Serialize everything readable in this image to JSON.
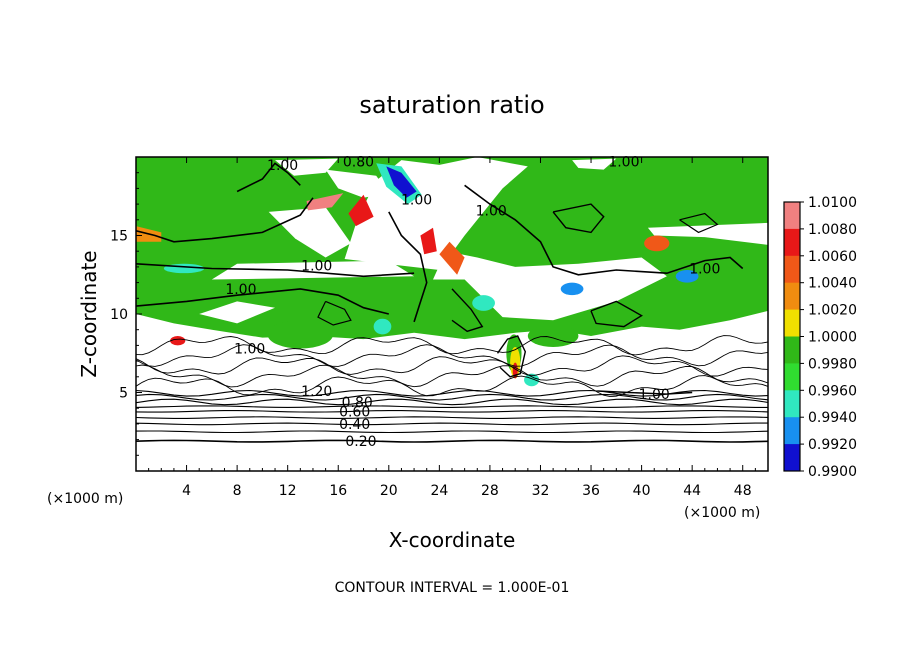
{
  "chart_data": {
    "type": "heatmap",
    "title": "saturation ratio",
    "xlabel": "X-coordinate",
    "ylabel": "Z-coordinate",
    "x_unit": "(×1000 m)",
    "y_unit": "(×1000 m)",
    "xlim": [
      0,
      50
    ],
    "ylim": [
      0,
      20
    ],
    "x_ticks": [
      4,
      8,
      12,
      16,
      20,
      24,
      28,
      32,
      36,
      40,
      44,
      48
    ],
    "y_ticks": [
      5,
      10,
      15
    ],
    "footer": "CONTOUR INTERVAL = 1.000E-01",
    "colorbar": {
      "labels": [
        "1.0100",
        "1.0080",
        "1.0060",
        "1.0040",
        "1.0020",
        "1.0000",
        "0.9980",
        "0.9960",
        "0.9940",
        "0.9920",
        "0.9900"
      ],
      "colors": [
        "#f08080",
        "#e81818",
        "#f05818",
        "#f08c10",
        "#f0e000",
        "#30b818",
        "#30dc30",
        "#30e8c0",
        "#1890f0",
        "#1010d0",
        "#6a0a9a"
      ]
    },
    "contour_labels": [
      {
        "text": "0.20",
        "x": 17.8,
        "y": 1.9
      },
      {
        "text": "0.40",
        "x": 17.3,
        "y": 3.0
      },
      {
        "text": "0.60",
        "x": 17.3,
        "y": 3.8
      },
      {
        "text": "0.80",
        "x": 17.5,
        "y": 4.4
      },
      {
        "text": "1.20",
        "x": 14.3,
        "y": 5.1
      },
      {
        "text": "1.00",
        "x": 41.0,
        "y": 4.9
      },
      {
        "text": "1.00",
        "x": 9.0,
        "y": 7.8
      },
      {
        "text": "1.00",
        "x": 8.3,
        "y": 11.6
      },
      {
        "text": "1.00",
        "x": 14.3,
        "y": 13.1
      },
      {
        "text": "1.00",
        "x": 22.2,
        "y": 17.3
      },
      {
        "text": "1.00",
        "x": 28.1,
        "y": 16.6
      },
      {
        "text": "1.00",
        "x": 45.0,
        "y": 12.9
      },
      {
        "text": "1.00",
        "x": 11.6,
        "y": 19.5
      },
      {
        "text": "0.80",
        "x": 17.6,
        "y": 19.7
      },
      {
        "text": "1.00",
        "x": 38.6,
        "y": 19.7
      }
    ]
  }
}
